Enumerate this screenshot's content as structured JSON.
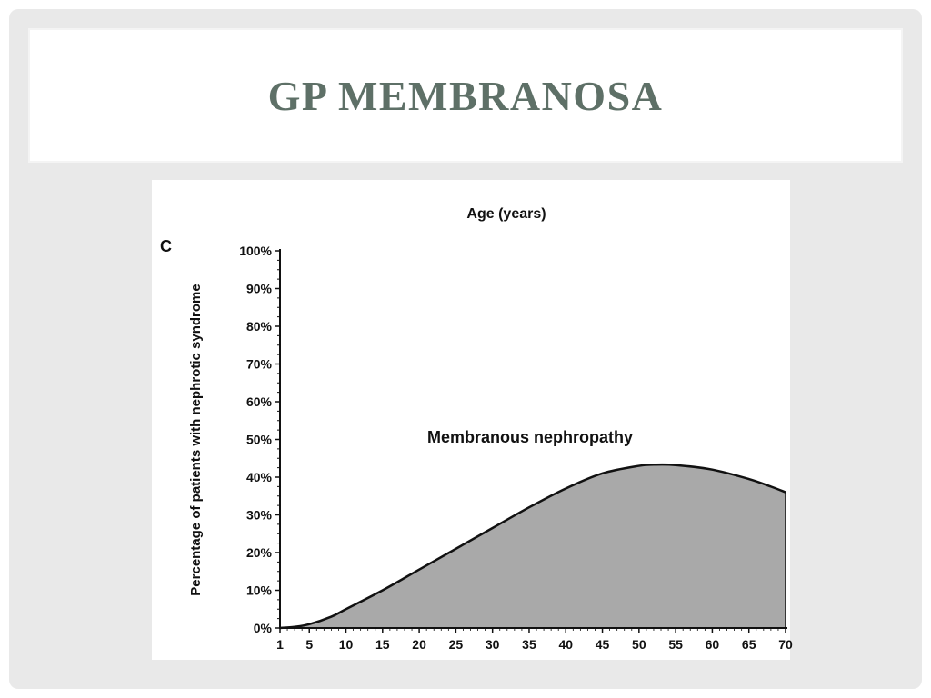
{
  "slide": {
    "title": "GP MEMBRANOSA"
  },
  "chart_data": {
    "type": "area",
    "panel_label": "C",
    "title": "Age (years)",
    "xlabel": "Age (years)",
    "ylabel": "Percentage of patients with nephrotic syndrome",
    "annotation": "Membranous nephropathy",
    "x_ticks": [
      1,
      5,
      10,
      15,
      20,
      25,
      30,
      35,
      40,
      45,
      50,
      55,
      60,
      65,
      70
    ],
    "y_ticks": [
      "0%",
      "10%",
      "20%",
      "30%",
      "40%",
      "50%",
      "60%",
      "70%",
      "80%",
      "90%",
      "100%"
    ],
    "xlim": [
      1,
      70
    ],
    "ylim": [
      0,
      100
    ],
    "grid": false,
    "fill_color": "#a9a9a9",
    "series": [
      {
        "x": [
          1,
          3,
          5,
          8,
          10,
          15,
          20,
          25,
          30,
          35,
          40,
          45,
          50,
          52,
          55,
          60,
          65,
          68,
          70
        ],
        "values": [
          0,
          0.3,
          1,
          3,
          5,
          10,
          15.5,
          21,
          26.5,
          32,
          37,
          41,
          43,
          43.3,
          43.2,
          42,
          39.5,
          37.5,
          36
        ]
      }
    ]
  }
}
